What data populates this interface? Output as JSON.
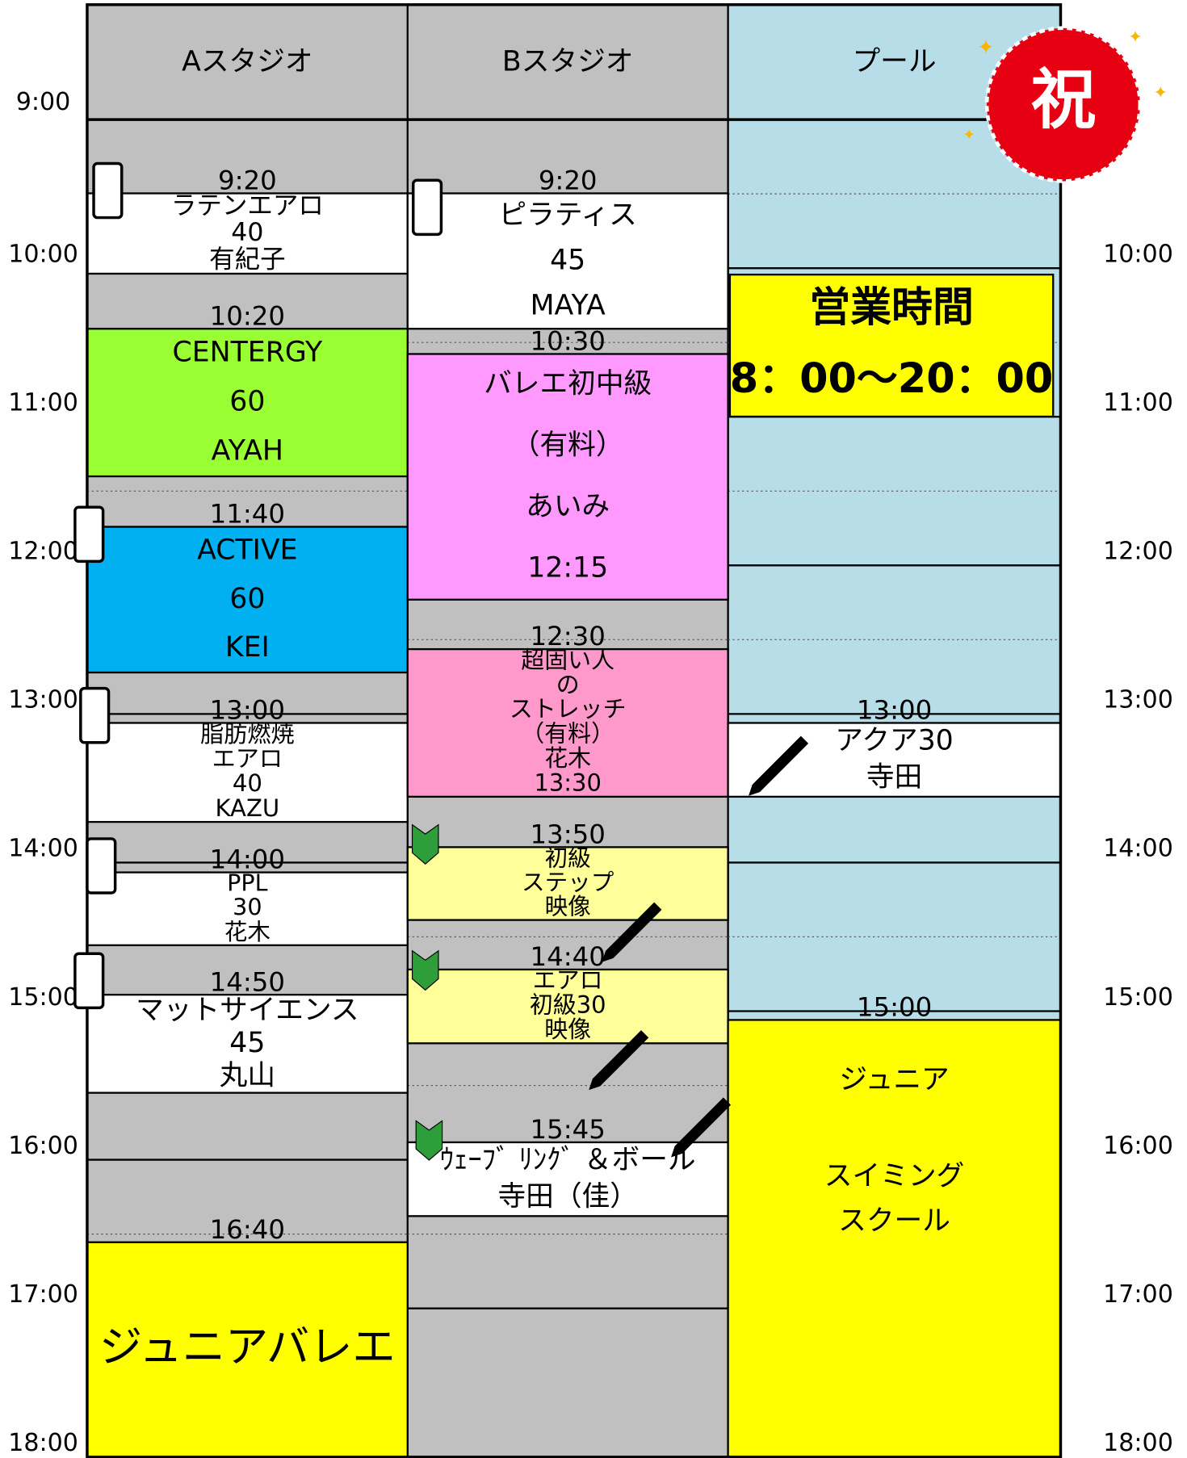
{
  "header": {
    "columns": [
      "Aスタジオ",
      "Bスタジオ",
      "プール"
    ],
    "badge": "祝"
  },
  "time_labels": {
    "left": [
      "9:00",
      "10:00",
      "11:00",
      "12:00",
      "13:00",
      "14:00",
      "15:00",
      "16:00",
      "17:00",
      "18:00"
    ],
    "right": [
      "10:00",
      "11:00",
      "12:00",
      "13:00",
      "14:00",
      "15:00",
      "16:00",
      "17:00",
      "18:00"
    ]
  },
  "columns": [
    {
      "events": [
        {
          "start": "9:20",
          "lines": [
            "ラテンエアロ",
            "40",
            "有紀子"
          ]
        },
        {
          "start": "10:20",
          "lines": [
            "CENTERGY",
            "60",
            "AYAH"
          ]
        },
        {
          "start": "11:40",
          "lines": [
            "ACTIVE",
            "60",
            "KEI"
          ]
        },
        {
          "start": "13:00",
          "lines": [
            "脂肪燃焼",
            "エアロ",
            "40",
            "KAZU"
          ]
        },
        {
          "start": "14:00",
          "lines": [
            "PPL",
            "30",
            "花木"
          ]
        },
        {
          "start": "14:50",
          "lines": [
            "マットサイエンス",
            "45",
            "丸山"
          ]
        },
        {
          "start": "16:40",
          "lines": [
            "ジュニアバレエ"
          ]
        }
      ]
    },
    {
      "events": [
        {
          "start": "9:20",
          "lines": [
            "ピラティス",
            "45",
            "MAYA"
          ]
        },
        {
          "start": "10:30",
          "lines": [
            "バレエ初中級",
            "（有料）",
            "あいみ",
            "12:15"
          ]
        },
        {
          "start": "12:30",
          "lines": [
            "超固い人",
            "の",
            "ストレッチ",
            "（有料）",
            "花木",
            "13:30"
          ]
        },
        {
          "start": "13:50",
          "lines": [
            "初級",
            "ステップ",
            "映像"
          ]
        },
        {
          "start": "14:40",
          "lines": [
            "エアロ",
            "初級30",
            "映像"
          ]
        },
        {
          "start": "15:45",
          "lines": [
            "ｳｪｰﾌﾞ ﾘﾝｸﾞ ＆ボール",
            "寺田（佳）"
          ]
        }
      ]
    },
    {
      "events": [
        {
          "lines": [
            "営業時間",
            "8：00～20：00"
          ]
        },
        {
          "start": "13:00",
          "lines": [
            "アクア30",
            "寺田"
          ]
        },
        {
          "start": "15:00",
          "lines": [
            "ジュニア",
            "スイミング",
            "スクール"
          ]
        }
      ]
    }
  ]
}
